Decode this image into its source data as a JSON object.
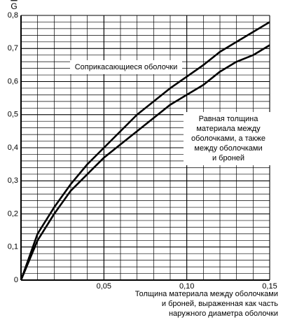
{
  "chart_data": {
    "type": "line",
    "ylabel": "G",
    "xlabel": [
      "Толщина материала между оболочками",
      "и броней, выраженная как часть",
      "наружного диаметра оболочки"
    ],
    "x": [
      0,
      0.01,
      0.02,
      0.03,
      0.04,
      0.05,
      0.06,
      0.07,
      0.08,
      0.09,
      0.1,
      0.11,
      0.12,
      0.13,
      0.14,
      0.15
    ],
    "series": [
      {
        "color": "#000000",
        "values": [
          0,
          0.14,
          0.22,
          0.29,
          0.35,
          0.4,
          0.45,
          0.5,
          0.54,
          0.58,
          0.615,
          0.65,
          0.69,
          0.72,
          0.75,
          0.78
        ]
      },
      {
        "color": "#000000",
        "values": [
          0,
          0.12,
          0.2,
          0.27,
          0.32,
          0.37,
          0.41,
          0.45,
          0.49,
          0.53,
          0.56,
          0.59,
          0.63,
          0.66,
          0.68,
          0.71
        ]
      }
    ],
    "annotations": [
      {
        "lines": [
          "Соприкасающиеся оболочки"
        ]
      },
      {
        "lines": [
          "Равная толщина",
          "материала между",
          "оболочками, а также",
          "между оболочками",
          "и броней"
        ]
      }
    ],
    "xlim": [
      0,
      0.15
    ],
    "xticks": [
      {
        "value": 0.05,
        "label": "0,05"
      },
      {
        "value": 0.1,
        "label": "0,10"
      },
      {
        "value": 0.15,
        "label": "0,15"
      }
    ],
    "ylim": [
      0,
      0.8
    ],
    "yticks": [
      0,
      {
        "value": 0.1,
        "label": "0,1"
      },
      {
        "value": 0.2,
        "label": "0,2"
      },
      {
        "value": 0.3,
        "label": "0,3"
      },
      {
        "value": 0.4,
        "label": "0,4"
      },
      {
        "value": 0.5,
        "label": "0,5"
      },
      {
        "value": 0.6,
        "label": "0,6"
      },
      {
        "value": 0.7,
        "label": "0,7"
      },
      {
        "value": 0.8,
        "label": "0,8"
      }
    ],
    "grid": true
  }
}
